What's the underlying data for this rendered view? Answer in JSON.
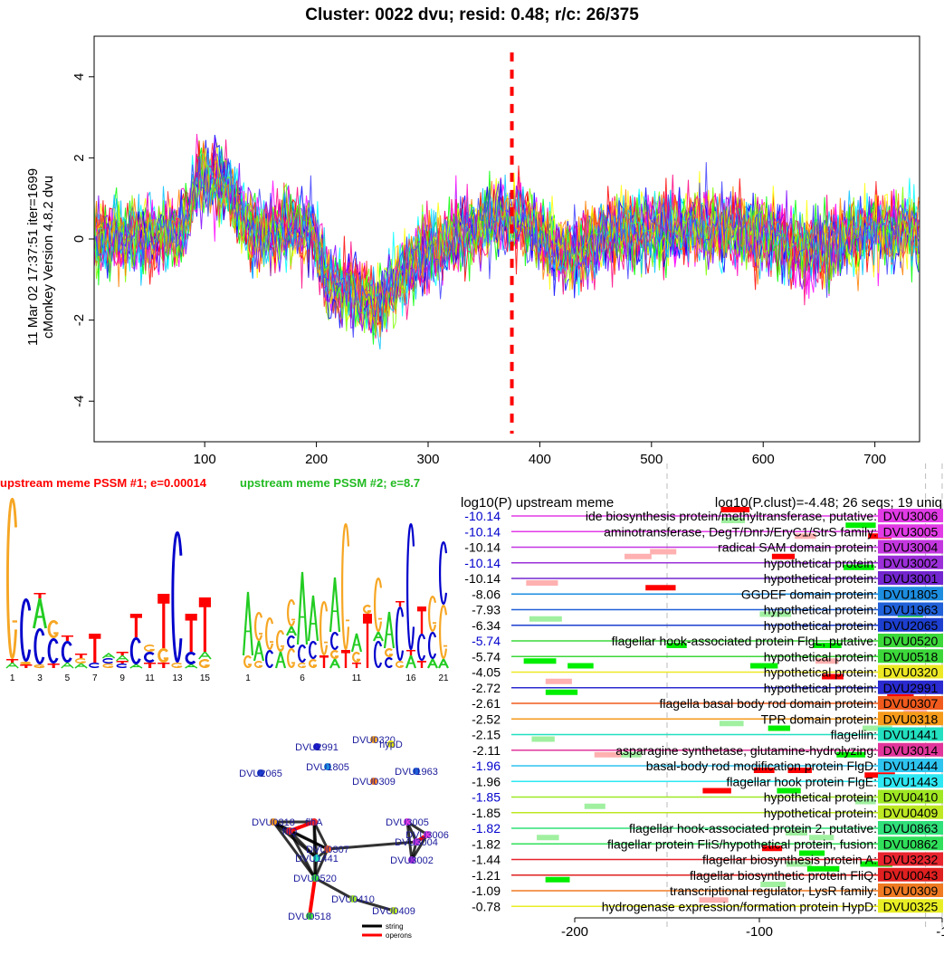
{
  "title": "Cluster: 0022 dvu; resid: 0.48; r/c: 26/375",
  "side_label": {
    "line1": "11 Mar 02 17:37:51 iter=1699",
    "line2": "cMonkey Version 4.8.2 dvu"
  },
  "colors": {
    "dashed_marker": "#ff0000",
    "axis": "#000000",
    "meme1_title": "#ff0000",
    "meme2_title": "#22bb22",
    "base_A": "#22cc22",
    "base_C": "#0000cc",
    "base_G": "#f6a623",
    "base_T": "#ff0000",
    "string_edge": "#000000",
    "operon_edge": "#ff0000"
  },
  "chart_data": [
    {
      "type": "line",
      "description_of_series": "expression profiles of 26 genes over 740 conditions",
      "x": [
        0,
        740
      ],
      "xlim": [
        1,
        740
      ],
      "ylim": [
        -5,
        5
      ],
      "xticks": [
        "100",
        "200",
        "300",
        "400",
        "500",
        "600",
        "700"
      ],
      "yticks": [
        "4",
        "2",
        "0",
        "-2",
        "-4"
      ],
      "vline_x": 375,
      "series_colors": [
        "#ff00ff",
        "#ff0000",
        "#0000ff",
        "#00ffff",
        "#00ff00",
        "#ffff00",
        "#7f00ff",
        "#ff007f",
        "#00bfff",
        "#ff7f00",
        "#7fff00",
        "#4040ff",
        "#ff00bf",
        "#ff3030"
      ]
    },
    {
      "type": "sequence_logo",
      "title": "upstream meme PSSM #1; e=0.00014",
      "positions": [
        "1",
        "3",
        "5",
        "7",
        "9",
        "11",
        "13",
        "15"
      ],
      "letters_top": [
        "G",
        "C",
        "A",
        "T",
        "G",
        "T",
        "C",
        "T",
        "C",
        "T",
        "G",
        "C",
        "T",
        "T",
        "A"
      ]
    },
    {
      "type": "sequence_logo",
      "title": "upstream meme PSSM #2; e=8.7",
      "positions": [
        "1",
        "6",
        "11",
        "16",
        "21"
      ],
      "letters_top": [
        "A",
        "G",
        "G",
        "G",
        "G",
        "G",
        "G",
        "T",
        "G",
        "C",
        "T",
        "C",
        "G",
        "C",
        "G"
      ]
    },
    {
      "type": "network",
      "nodes": [
        "DVU0320",
        "hypD",
        "DVU2991",
        "DVU1805",
        "DVU1963",
        "DVU2065",
        "DVU0309",
        "DVU0318",
        "flhA",
        "fliQ",
        "DVU0307",
        "DVU1441",
        "DVU3005",
        "DVU3006",
        "DVU3004",
        "DVU3002",
        "DVU0520",
        "DVU0410",
        "DVU0409",
        "DVU0518"
      ],
      "legend": [
        "string",
        "operons"
      ]
    },
    {
      "type": "table",
      "header_left": "log10(P) upstream meme",
      "header_right": "log10(P.clust)=-4.48; 26 seqs; 19 uniq",
      "xticks": [
        "-200",
        "-100",
        "-1"
      ],
      "rows": [
        {
          "p": "-10.14",
          "desc": "ide biosynthesis protein/methyltransferase, putative:",
          "gene": "DVU3006",
          "color": "#e23be6",
          "p_color": "#0000cc"
        },
        {
          "p": "-10.14",
          "desc": "aminotransferase, DegT/DnrJ/EryC1/StrS family:",
          "gene": "DVU3005",
          "color": "#e23be6",
          "p_color": "#0000cc"
        },
        {
          "p": "-10.14",
          "desc": "radical SAM domain protein:",
          "gene": "DVU3004",
          "color": "#c437e0",
          "p_color": "#000000"
        },
        {
          "p": "-10.14",
          "desc": "hypothetical protein:",
          "gene": "DVU3002",
          "color": "#9b2fd8",
          "p_color": "#0000cc"
        },
        {
          "p": "-10.14",
          "desc": "hypothetical protein:",
          "gene": "DVU3001",
          "color": "#7326cf",
          "p_color": "#000000"
        },
        {
          "p": "-8.06",
          "desc": "GGDEF domain protein:",
          "gene": "DVU1805",
          "color": "#1d8de0",
          "p_color": "#000000"
        },
        {
          "p": "-7.93",
          "desc": "hypothetical protein:",
          "gene": "DVU1963",
          "color": "#2060d8",
          "p_color": "#000000"
        },
        {
          "p": "-6.34",
          "desc": "hypothetical protein:",
          "gene": "DVU2065",
          "color": "#1d3fd0",
          "p_color": "#000000"
        },
        {
          "p": "-5.74",
          "desc": "flagellar hook-associated protein FlgL, putative:",
          "gene": "DVU0520",
          "color": "#3cd83a",
          "p_color": "#0000cc"
        },
        {
          "p": "-5.74",
          "desc": "hypothetical protein:",
          "gene": "DVU0518",
          "color": "#3cd83a",
          "p_color": "#000000"
        },
        {
          "p": "-4.05",
          "desc": "hypothetical protein:",
          "gene": "DVU0320",
          "color": "#ece824",
          "p_color": "#000000"
        },
        {
          "p": "-2.72",
          "desc": "hypothetical protein:",
          "gene": "DVU2991",
          "color": "#2a2ad0",
          "p_color": "#000000"
        },
        {
          "p": "-2.61",
          "desc": "flagella basal body rod domain protein:",
          "gene": "DVU0307",
          "color": "#f05a1d",
          "p_color": "#000000"
        },
        {
          "p": "-2.52",
          "desc": "TPR domain protein:",
          "gene": "DVU0318",
          "color": "#f59a1a",
          "p_color": "#000000"
        },
        {
          "p": "-2.15",
          "desc": "flagellin:",
          "gene": "DVU1441",
          "color": "#22e0c0",
          "p_color": "#000000"
        },
        {
          "p": "-2.11",
          "desc": "asparagine synthetase, glutamine-hydrolyzing:",
          "gene": "DVU3014",
          "color": "#e2359b",
          "p_color": "#000000"
        },
        {
          "p": "-1.96",
          "desc": "basal-body rod modification protein FlgD:",
          "gene": "DVU1444",
          "color": "#2ec4f0",
          "p_color": "#0000cc"
        },
        {
          "p": "-1.96",
          "desc": "flagellar hook protein FlgE:",
          "gene": "DVU1443",
          "color": "#2de8f2",
          "p_color": "#000000"
        },
        {
          "p": "-1.85",
          "desc": "hypothetical protein:",
          "gene": "DVU0410",
          "color": "#9fe823",
          "p_color": "#0000cc"
        },
        {
          "p": "-1.85",
          "desc": "hypothetical protein:",
          "gene": "DVU0409",
          "color": "#bde823",
          "p_color": "#000000"
        },
        {
          "p": "-1.82",
          "desc": "flagellar hook-associated protein 2, putative:",
          "gene": "DVU0863",
          "color": "#30e07a",
          "p_color": "#0000cc"
        },
        {
          "p": "-1.82",
          "desc": "flagellar protein FliS/hypothetical protein, fusion:",
          "gene": "DVU0862",
          "color": "#30e05a",
          "p_color": "#000000"
        },
        {
          "p": "-1.44",
          "desc": "flagellar biosynthesis protein A:",
          "gene": "DVU3232",
          "color": "#e8242e",
          "p_color": "#000000"
        },
        {
          "p": "-1.21",
          "desc": "flagellar biosynthetic protein FliQ:",
          "gene": "DVU0043",
          "color": "#e02020",
          "p_color": "#000000"
        },
        {
          "p": "-1.09",
          "desc": "transcriptional regulator, LysR family:",
          "gene": "DVU0309",
          "color": "#f07a22",
          "p_color": "#000000"
        },
        {
          "p": "-0.78",
          "desc": "hydrogenase expression/formation protein HypD:",
          "gene": "DVU0325",
          "color": "#e8ee24",
          "p_color": "#000000"
        }
      ]
    }
  ]
}
